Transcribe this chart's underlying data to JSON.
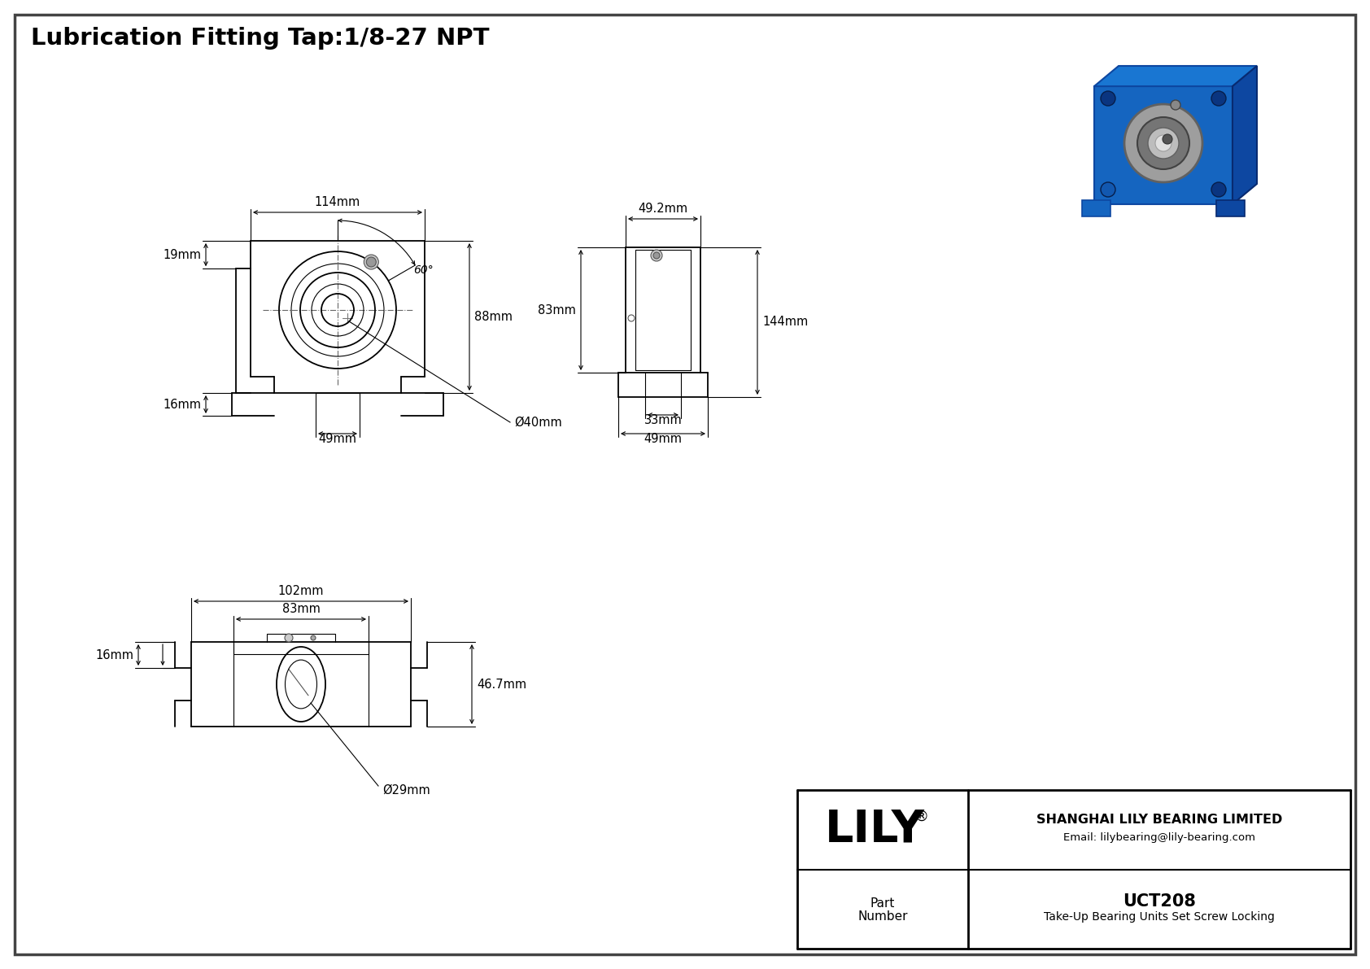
{
  "title": "Lubrication Fitting Tap:1/8-27 NPT",
  "part_number": "UCT208",
  "part_desc": "Take-Up Bearing Units Set Screw Locking",
  "company": "SHANGHAI LILY BEARING LIMITED",
  "email": "Email: lilybearing@lily-bearing.com",
  "brand": "LILY",
  "dim_114": "114mm",
  "dim_88": "88mm",
  "dim_19": "19mm",
  "dim_16a": "16mm",
  "dim_49": "49mm",
  "dim_40": "Ø40mm",
  "dim_60": "60°",
  "dim_49_2": "49.2mm",
  "dim_83s": "83mm",
  "dim_144": "144mm",
  "dim_33": "33mm",
  "dim_49s": "49mm",
  "dim_102": "102mm",
  "dim_83b": "83mm",
  "dim_46_7": "46.7mm",
  "dim_16b": "16mm",
  "dim_29": "Ø29mm"
}
